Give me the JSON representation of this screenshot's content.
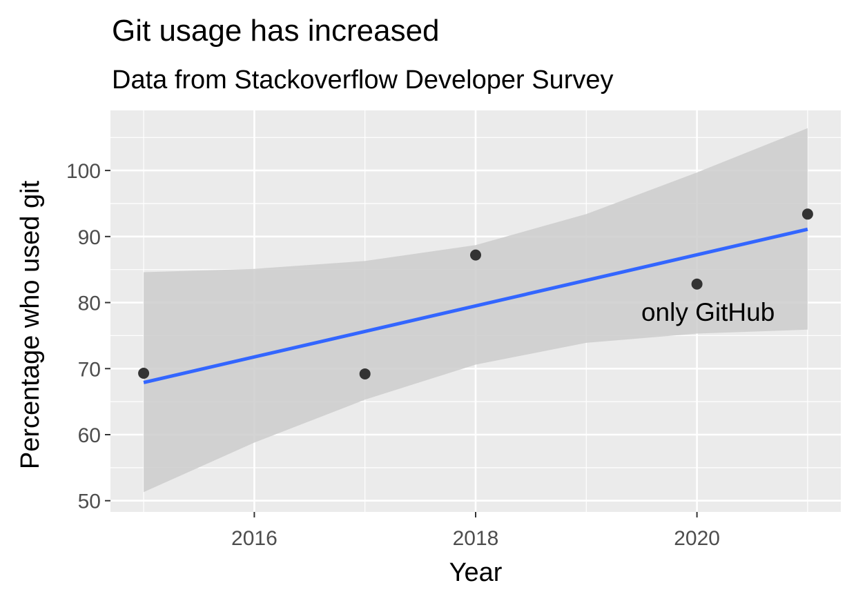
{
  "chart_data": {
    "type": "scatter",
    "title": "Git usage has increased",
    "subtitle": "Data from Stackoverflow Developer Survey",
    "xlabel": "Year",
    "ylabel": "Percentage who used git",
    "xlim": [
      2014.7,
      2021.3
    ],
    "ylim": [
      48.3,
      109.1
    ],
    "x_ticks": [
      2016,
      2018,
      2020
    ],
    "x_tick_labels": [
      "2016",
      "2018",
      "2020"
    ],
    "y_ticks": [
      50,
      60,
      70,
      80,
      90,
      100
    ],
    "y_tick_labels": [
      "50",
      "60",
      "70",
      "80",
      "90",
      "100"
    ],
    "grid": true,
    "legend": "none",
    "points": [
      {
        "x": 2015,
        "y": 69.3
      },
      {
        "x": 2017,
        "y": 69.2
      },
      {
        "x": 2018,
        "y": 87.2
      },
      {
        "x": 2020,
        "y": 82.8
      },
      {
        "x": 2021,
        "y": 93.4
      }
    ],
    "trend_line": {
      "method": "linear",
      "x": [
        2015,
        2021
      ],
      "y": [
        67.9,
        91.1
      ]
    },
    "confidence_band": {
      "x": [
        2015,
        2016,
        2017,
        2018,
        2019,
        2020,
        2021
      ],
      "lower": [
        51.3,
        58.8,
        65.3,
        70.6,
        73.9,
        75.3,
        75.9
      ],
      "upper": [
        84.6,
        85.1,
        86.3,
        88.7,
        93.4,
        99.7,
        106.4
      ]
    },
    "annotations": [
      {
        "text": "only GitHub",
        "x": 2020.1,
        "y": 78.6
      }
    ],
    "colors": {
      "panel": "#ebebeb",
      "grid": "#ffffff",
      "points": "#333333",
      "trend_line": "#3366ff",
      "band": "#cccccc",
      "axis_text": "#4d4d4d"
    }
  }
}
